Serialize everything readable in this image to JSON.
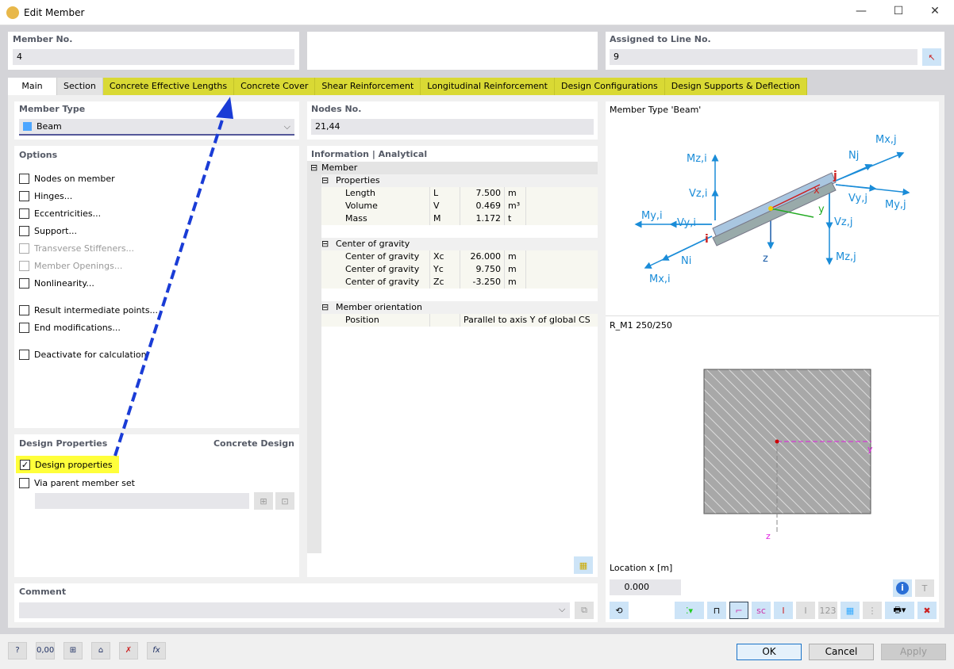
{
  "window": {
    "title": "Edit Member",
    "minimize": "—",
    "maximize": "☐",
    "close": "✕"
  },
  "top": {
    "member_no_label": "Member No.",
    "member_no": "4",
    "assigned_label": "Assigned to Line No.",
    "assigned_value": "9"
  },
  "tabs": [
    {
      "label": "Main"
    },
    {
      "label": "Section"
    },
    {
      "label": "Concrete Effective Lengths"
    },
    {
      "label": "Concrete Cover"
    },
    {
      "label": "Shear Reinforcement"
    },
    {
      "label": "Longitudinal Reinforcement"
    },
    {
      "label": "Design Configurations"
    },
    {
      "label": "Design Supports & Deflection"
    }
  ],
  "member_type": {
    "label": "Member Type",
    "value": "Beam",
    "color": "#4da6ff"
  },
  "options": {
    "label": "Options",
    "items": [
      {
        "label": "Nodes on member",
        "checked": false,
        "enabled": true
      },
      {
        "label": "Hinges...",
        "checked": false,
        "enabled": true
      },
      {
        "label": "Eccentricities...",
        "checked": false,
        "enabled": true
      },
      {
        "label": "Support...",
        "checked": false,
        "enabled": true
      },
      {
        "label": "Transverse Stiffeners...",
        "checked": false,
        "enabled": false
      },
      {
        "label": "Member Openings...",
        "checked": false,
        "enabled": false
      },
      {
        "label": "Nonlinearity...",
        "checked": false,
        "enabled": true
      },
      {
        "label": "Result intermediate points...",
        "checked": false,
        "enabled": true
      },
      {
        "label": "End modifications...",
        "checked": false,
        "enabled": true
      },
      {
        "label": "Deactivate for calculation",
        "checked": false,
        "enabled": true
      }
    ]
  },
  "design": {
    "label": "Design Properties",
    "addon": "Concrete Design",
    "design_properties": "Design properties",
    "via_parent": "Via parent member set",
    "check": "✓"
  },
  "nodes": {
    "label": "Nodes No.",
    "value": "21,44"
  },
  "info": {
    "label": "Information | Analytical",
    "member": "Member",
    "properties": "Properties",
    "props": [
      {
        "name": "Length",
        "sym": "L",
        "value": "7.500",
        "unit": "m"
      },
      {
        "name": "Volume",
        "sym": "V",
        "value": "0.469",
        "unit": "m³"
      },
      {
        "name": "Mass",
        "sym": "M",
        "value": "1.172",
        "unit": "t"
      }
    ],
    "cog": "Center of gravity",
    "cogs": [
      {
        "name": "Center of gravity",
        "sym": "Xc",
        "value": "26.000",
        "unit": "m"
      },
      {
        "name": "Center of gravity",
        "sym": "Yc",
        "value": "9.750",
        "unit": "m"
      },
      {
        "name": "Center of gravity",
        "sym": "Zc",
        "value": "-3.250",
        "unit": "m"
      }
    ],
    "orientation": "Member orientation",
    "position_label": "Position",
    "position_value": "Parallel to axis Y of global CS"
  },
  "preview": {
    "title": "Member Type 'Beam'",
    "labels": {
      "mzi": "Mz,i",
      "vzi": "Vz,i",
      "myi": "My,i",
      "vyi": "Vy,i",
      "ni": "Ni",
      "mxi": "Mx,i",
      "i": "i",
      "j": "j",
      "x": "x",
      "y": "y",
      "z": "z",
      "nj": "Nj",
      "mxj": "Mx,j",
      "vyj": "Vy,j",
      "myj": "My,j",
      "vzj": "Vz,j",
      "mzj": "Mz,j"
    }
  },
  "section": {
    "name": "R_M1 250/250",
    "y": "y",
    "z": "z",
    "location_label": "Location x [m]",
    "location_value": "0.000"
  },
  "comment": {
    "label": "Comment",
    "value": ""
  },
  "buttons": {
    "ok": "OK",
    "cancel": "Cancel",
    "apply": "Apply"
  },
  "accent": "#1a3cd6",
  "highlight": "#d9d934"
}
